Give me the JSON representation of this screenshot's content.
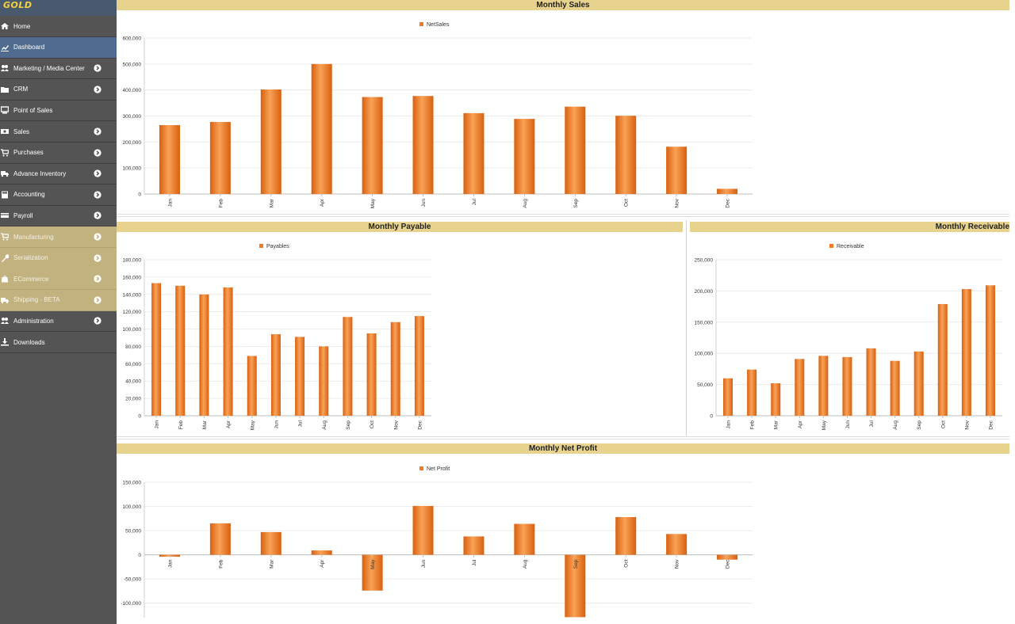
{
  "app": {
    "logo_text": "GOLD"
  },
  "sidebar": {
    "items": [
      {
        "label": "Home",
        "icon": "home-icon",
        "arrow": false,
        "state": "normal"
      },
      {
        "label": "Dashboard",
        "icon": "chart-icon",
        "arrow": false,
        "state": "active"
      },
      {
        "label": "Marketing / Media Center",
        "icon": "users-icon",
        "arrow": true,
        "state": "normal"
      },
      {
        "label": "CRM",
        "icon": "folder-icon",
        "arrow": true,
        "state": "normal"
      },
      {
        "label": "Point of Sales",
        "icon": "monitor-icon",
        "arrow": false,
        "state": "normal"
      },
      {
        "label": "Sales",
        "icon": "money-icon",
        "arrow": true,
        "state": "normal"
      },
      {
        "label": "Purchases",
        "icon": "cart-icon",
        "arrow": true,
        "state": "normal"
      },
      {
        "label": "Advance Inventory",
        "icon": "truck-icon",
        "arrow": true,
        "state": "normal"
      },
      {
        "label": "Accounting",
        "icon": "calculator-icon",
        "arrow": true,
        "state": "normal"
      },
      {
        "label": "Payroll",
        "icon": "card-icon",
        "arrow": true,
        "state": "normal"
      },
      {
        "label": "Manufacturing",
        "icon": "cart-icon",
        "arrow": true,
        "state": "gold"
      },
      {
        "label": "Serialization",
        "icon": "wrench-icon",
        "arrow": true,
        "state": "gold"
      },
      {
        "label": "ECommerce",
        "icon": "bag-icon",
        "arrow": true,
        "state": "gold"
      },
      {
        "label": "Shipping - BETA",
        "icon": "truck-icon",
        "arrow": true,
        "state": "gold"
      },
      {
        "label": "Administration",
        "icon": "users-icon",
        "arrow": true,
        "state": "normal"
      },
      {
        "label": "Downloads",
        "icon": "download-icon",
        "arrow": false,
        "state": "normal"
      }
    ]
  },
  "colors": {
    "bar": "#f47a22",
    "bar_light": "#f9a257",
    "bar_dark": "#d8600f",
    "header": "#e8d38e",
    "active": "#4f6b8e"
  },
  "panels": {
    "sales": {
      "title": "Monthly Sales"
    },
    "payable": {
      "title": "Monthly Payable"
    },
    "receivable": {
      "title": "Monthly Receivable"
    },
    "profit": {
      "title": "Monthly Net Profit"
    }
  },
  "chart_data": [
    {
      "id": "sales",
      "type": "bar",
      "title": "Monthly Sales",
      "legend": "NetSales",
      "categories": [
        "Jan",
        "Feb",
        "Mar",
        "Apr",
        "May",
        "Jun",
        "Jul",
        "Aug",
        "Sep",
        "Oct",
        "Nov",
        "Dec"
      ],
      "values": [
        265000,
        277000,
        402000,
        500000,
        373000,
        377000,
        311000,
        289000,
        336000,
        301000,
        182000,
        20000
      ],
      "yticks": [
        0,
        100000,
        200000,
        300000,
        400000,
        500000,
        600000
      ],
      "ylim": [
        0,
        600000
      ]
    },
    {
      "id": "payable",
      "type": "bar",
      "title": "Monthly Payable",
      "legend": "Payables",
      "categories": [
        "Jan",
        "Feb",
        "Mar",
        "Apr",
        "May",
        "Jun",
        "Jul",
        "Aug",
        "Sep",
        "Oct",
        "Nov",
        "Dec"
      ],
      "values": [
        153000,
        150000,
        140000,
        148000,
        69000,
        94000,
        91000,
        80000,
        114000,
        95000,
        108000,
        115000
      ],
      "yticks": [
        0,
        20000,
        40000,
        60000,
        80000,
        100000,
        120000,
        140000,
        160000,
        180000
      ],
      "ylim": [
        0,
        180000
      ]
    },
    {
      "id": "receivable",
      "type": "bar",
      "title": "Monthly Receivable",
      "legend": "Receivable",
      "categories": [
        "Jan",
        "Feb",
        "Mar",
        "Apr",
        "May",
        "Jun",
        "Jul",
        "Aug",
        "Sep",
        "Oct",
        "Nov",
        "Dec"
      ],
      "values": [
        60000,
        74000,
        52000,
        91000,
        96000,
        94000,
        108000,
        88000,
        103000,
        179000,
        203000,
        209000
      ],
      "yticks": [
        0,
        50000,
        100000,
        150000,
        200000,
        250000
      ],
      "ylim": [
        0,
        250000
      ]
    },
    {
      "id": "profit",
      "type": "bar",
      "title": "Monthly Net Profit",
      "legend": "Net Profit",
      "categories": [
        "Jan",
        "Feb",
        "Mar",
        "Apr",
        "May",
        "Jun",
        "Jul",
        "Aug",
        "Sep",
        "Oct",
        "Nov",
        "Dec"
      ],
      "values": [
        -4000,
        65000,
        47000,
        9000,
        -74000,
        101000,
        38000,
        64000,
        -129000,
        78000,
        43000,
        -10000
      ],
      "yticks": [
        -100000,
        -50000,
        0,
        50000,
        100000,
        150000
      ],
      "ylim": [
        -130000,
        150000
      ]
    }
  ]
}
